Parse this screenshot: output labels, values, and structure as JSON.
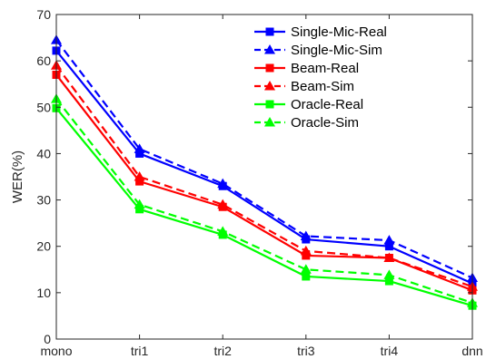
{
  "chart_data": {
    "type": "line",
    "title": "",
    "xlabel": "",
    "ylabel": "WER(%)",
    "categories": [
      "mono",
      "tri1",
      "tri2",
      "tri3",
      "tri4",
      "dnn"
    ],
    "ylim": [
      0,
      70
    ],
    "yticks": [
      0,
      10,
      20,
      30,
      40,
      50,
      60,
      70
    ],
    "grid": false,
    "legend_position": "top-right",
    "series": [
      {
        "name": "Single-Mic-Real",
        "color": "#0000ff",
        "line_style": "solid",
        "marker": "square",
        "values": [
          62.2,
          40.0,
          33.0,
          21.5,
          20.0,
          12.0
        ]
      },
      {
        "name": "Single-Mic-Sim",
        "color": "#0000ff",
        "line_style": "dashed",
        "marker": "triangle",
        "values": [
          64.5,
          41.0,
          33.5,
          22.2,
          21.3,
          13.2
        ]
      },
      {
        "name": "Beam-Real",
        "color": "#ff0000",
        "line_style": "solid",
        "marker": "square",
        "values": [
          57.0,
          34.0,
          28.5,
          18.0,
          17.5,
          10.5
        ]
      },
      {
        "name": "Beam-Sim",
        "color": "#ff0000",
        "line_style": "dashed",
        "marker": "triangle",
        "values": [
          59.0,
          35.0,
          29.0,
          19.0,
          17.5,
          11.3
        ]
      },
      {
        "name": "Oracle-Real",
        "color": "#00ff00",
        "line_style": "solid",
        "marker": "square",
        "values": [
          49.8,
          28.0,
          22.5,
          13.5,
          12.5,
          7.2
        ]
      },
      {
        "name": "Oracle-Sim",
        "color": "#00ff00",
        "line_style": "dashed",
        "marker": "triangle",
        "values": [
          51.8,
          29.0,
          23.2,
          15.0,
          13.8,
          7.8
        ]
      }
    ]
  }
}
